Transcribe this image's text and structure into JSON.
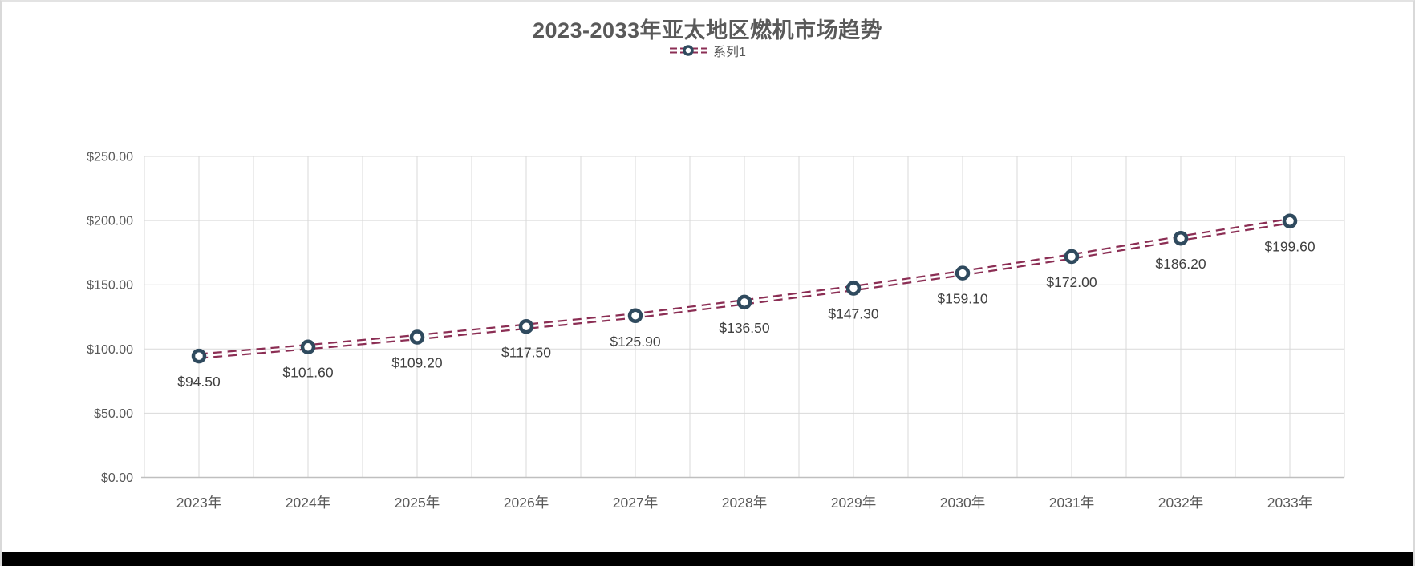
{
  "chart_data": {
    "type": "line",
    "title": "2023-2033年亚太地区燃机市场趋势",
    "categories": [
      "2023年",
      "2024年",
      "2025年",
      "2026年",
      "2027年",
      "2028年",
      "2029年",
      "2030年",
      "2031年",
      "2032年",
      "2033年"
    ],
    "series": [
      {
        "name": "系列1",
        "values": [
          94.5,
          101.6,
          109.2,
          117.5,
          125.9,
          136.5,
          147.3,
          159.1,
          172.0,
          186.2,
          199.6
        ],
        "data_labels": [
          "$94.50",
          "$101.60",
          "$109.20",
          "$117.50",
          "$125.90",
          "$136.50",
          "$147.30",
          "$159.10",
          "$172.00",
          "$186.20",
          "$199.60"
        ],
        "line_style": "double-dashed",
        "marker": "open-circle"
      }
    ],
    "ylabel": "",
    "xlabel": "",
    "ylim": [
      0,
      250
    ],
    "ytick_step": 50,
    "ytick_labels": [
      "$0.00",
      "$50.00",
      "$100.00",
      "$150.00",
      "$200.00",
      "$250.00"
    ],
    "grid": "horizontal-and-vertical",
    "legend_position": "top-center",
    "colors": {
      "line": "#8B2E54",
      "marker_stroke": "#2F4A5E",
      "marker_fill": "#FFFFFF",
      "gridline": "#D9D9D9",
      "axis_line": "#BFBFBF",
      "title_text": "#595959",
      "axis_text": "#595959",
      "data_label_text": "#404040",
      "bottom_bar": "#000000"
    }
  }
}
